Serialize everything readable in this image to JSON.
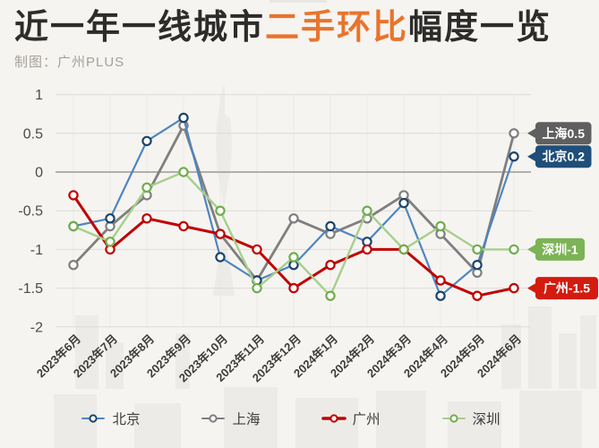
{
  "page": {
    "background": "#f6f4f1"
  },
  "header": {
    "title_prefix": "近一年一线城市",
    "title_highlight": "二手环比",
    "title_suffix": "幅度一览",
    "highlight_color": "#e8742c",
    "subtitle": "制图：广州PLUS"
  },
  "chart_data": {
    "type": "line",
    "title": "近一年一线城市二手环比幅度一览",
    "categories": [
      "2023年6月",
      "2023年7月",
      "2023年8月",
      "2023年9月",
      "2023年10月",
      "2023年11月",
      "2023年12月",
      "2024年1月",
      "2024年2月",
      "2024年3月",
      "2024年4月",
      "2024年5月",
      "2024年6月"
    ],
    "ylim": [
      -2,
      1
    ],
    "yticks": [
      1,
      0.5,
      0,
      -0.5,
      -1,
      -1.5,
      -2
    ],
    "grid": true,
    "legend_position": "bottom",
    "series": [
      {
        "id": "shanghai",
        "name": "上海",
        "values": [
          -1.2,
          -0.7,
          -0.3,
          0.6,
          -0.8,
          -1.4,
          -0.6,
          -0.8,
          -0.6,
          -0.3,
          -0.8,
          -1.3,
          0.5
        ],
        "line_color": "#7f7f7f",
        "marker_color": "#7f7f7f",
        "end_label": "上海0.5",
        "end_label_bg": "#5f5f5f"
      },
      {
        "id": "beijing",
        "name": "北京",
        "values": [
          -0.7,
          -0.6,
          0.4,
          0.7,
          -1.1,
          -1.4,
          -1.2,
          -0.7,
          -0.9,
          -0.4,
          -1.6,
          -1.2,
          0.2
        ],
        "line_color": "#4e86c0",
        "marker_color": "#1c4569",
        "end_label": "北京0.2",
        "end_label_bg": "#1f4e79"
      },
      {
        "id": "guangzhou",
        "name": "广州",
        "values": [
          -0.3,
          -1.0,
          -0.6,
          -0.7,
          -0.8,
          -1.0,
          -1.5,
          -1.2,
          -1.0,
          -1.0,
          -1.4,
          -1.6,
          -1.5
        ],
        "line_color": "#c00000",
        "marker_color": "#c00000",
        "end_label": "广州-1.5",
        "end_label_bg": "#d31b10"
      },
      {
        "id": "shenzhen",
        "name": "深圳",
        "values": [
          -0.7,
          -0.9,
          -0.2,
          0,
          -0.5,
          -1.5,
          -1.1,
          -1.6,
          -0.5,
          -1.0,
          -0.7,
          -1.0,
          -1.0
        ],
        "line_color": "#a6cf8c",
        "marker_color": "#6fae4d",
        "end_label": "深圳-1",
        "end_label_bg": "#7cb356"
      }
    ]
  },
  "legend": {
    "items": [
      {
        "id": "beijing",
        "label": "北京"
      },
      {
        "id": "shanghai",
        "label": "上海"
      },
      {
        "id": "guangzhou",
        "label": "广州"
      },
      {
        "id": "shenzhen",
        "label": "深圳"
      }
    ]
  }
}
